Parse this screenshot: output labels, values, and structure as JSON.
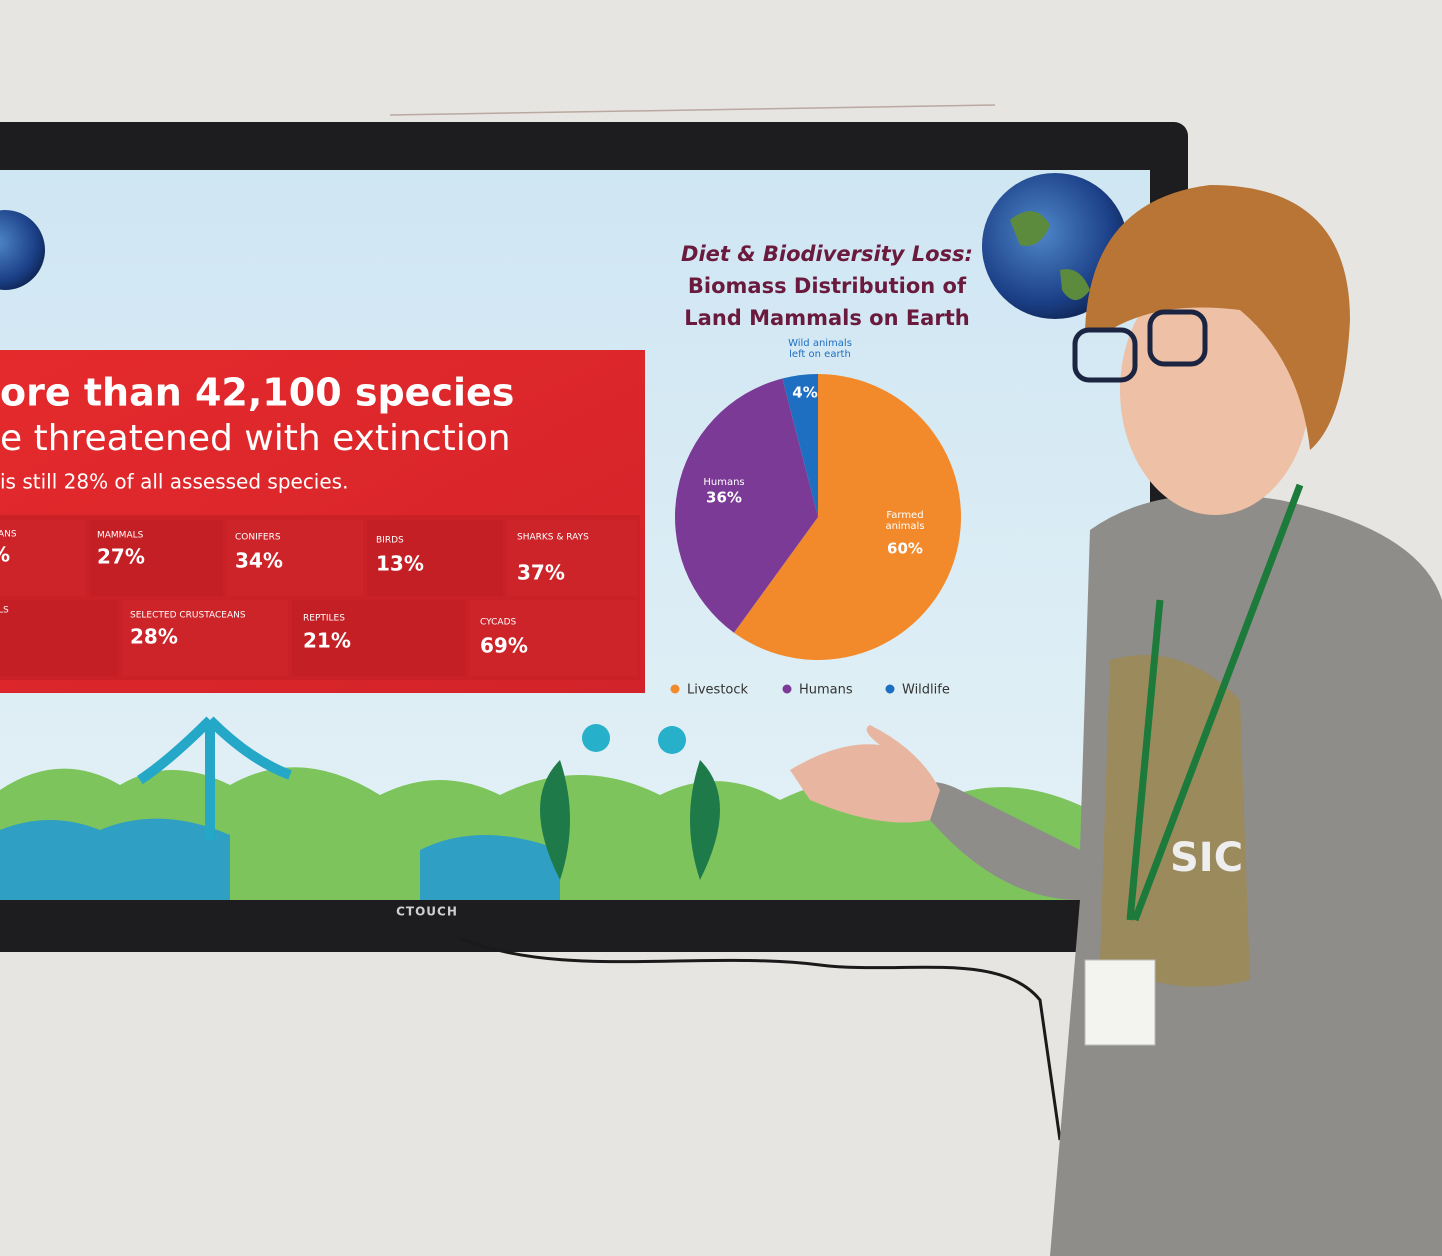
{
  "slide": {
    "headline": [
      "ore than 42,100 species",
      "e threatened with extinction",
      "is still 28% of all assessed species."
    ],
    "tiles": [
      {
        "name": "ANS",
        "value": "%"
      },
      {
        "name": "MAMMALS",
        "value": "27%"
      },
      {
        "name": "CONIFERS",
        "value": "34%"
      },
      {
        "name": "BIRDS",
        "value": "13%"
      },
      {
        "name": "SHARKS & RAYS",
        "value": "37%"
      },
      {
        "name": "LS"
      },
      {
        "name": "SELECTED CRUSTACEANS",
        "value": "28%"
      },
      {
        "name": "REPTILES",
        "value": "21%"
      },
      {
        "name": "CYCADS",
        "value": "69%"
      }
    ]
  },
  "chart_data": {
    "type": "pie",
    "title": [
      "Diet & Biodiversity Loss:",
      "Biomass Distribution of",
      "Land Mammals on Earth"
    ],
    "categories": [
      "Livestock",
      "Humans",
      "Wildlife"
    ],
    "slice_labels": [
      [
        "Farmed",
        "animals"
      ],
      [
        "Humans"
      ],
      [
        "Wild animals",
        "left on earth"
      ]
    ],
    "values": [
      60,
      36,
      4
    ],
    "value_labels": [
      "60%",
      "36%",
      "4%"
    ],
    "colors": [
      "#f28a2c",
      "#7b3a96",
      "#1e6fc1"
    ]
  },
  "monitor_brand": "CTOUCH"
}
